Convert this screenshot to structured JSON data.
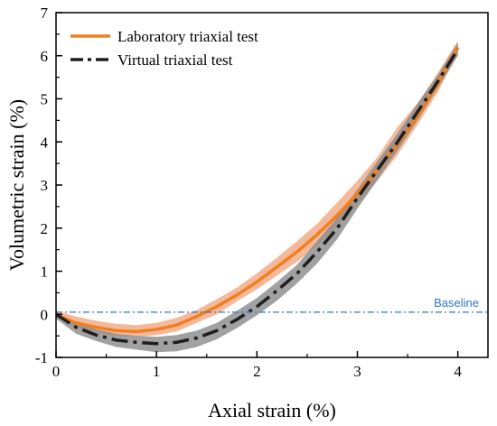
{
  "chart_data": {
    "type": "line",
    "xlabel": "Axial strain (%)",
    "ylabel": "Volumetric strain (%)",
    "xlim": [
      0,
      4.3
    ],
    "ylim": [
      -1,
      7
    ],
    "xticks": [
      "0",
      "1",
      "2",
      "3",
      "4"
    ],
    "yticks": [
      "-1",
      "0",
      "1",
      "2",
      "3",
      "4",
      "5",
      "6",
      "7"
    ],
    "legend_position": "top-left",
    "baseline": {
      "y": 0.05,
      "label": "Baseline",
      "color": "#2f77c2"
    },
    "series": [
      {
        "name": "Laboratory triaxial test",
        "style": "solid",
        "color": "#f07f1f",
        "band_color": "#f0a27a",
        "x": [
          0,
          0.2,
          0.4,
          0.6,
          0.8,
          1.0,
          1.2,
          1.4,
          1.6,
          1.8,
          2.0,
          2.2,
          2.4,
          2.6,
          2.8,
          3.0,
          3.2,
          3.4,
          3.6,
          3.8,
          4.0
        ],
        "y": [
          0,
          -0.2,
          -0.3,
          -0.38,
          -0.4,
          -0.35,
          -0.25,
          -0.05,
          0.18,
          0.45,
          0.75,
          1.1,
          1.45,
          1.85,
          2.3,
          2.8,
          3.35,
          3.95,
          4.6,
          5.35,
          6.2
        ],
        "lower": [
          -0.08,
          -0.32,
          -0.42,
          -0.5,
          -0.52,
          -0.48,
          -0.4,
          -0.2,
          0.0,
          0.3,
          0.58,
          0.9,
          1.22,
          1.6,
          2.05,
          2.55,
          3.1,
          3.7,
          4.4,
          5.15,
          6.05
        ],
        "upper": [
          0.08,
          -0.05,
          -0.15,
          -0.22,
          -0.25,
          -0.2,
          -0.08,
          0.1,
          0.35,
          0.62,
          0.95,
          1.32,
          1.7,
          2.1,
          2.6,
          3.1,
          3.65,
          4.35,
          4.9,
          5.6,
          6.35
        ]
      },
      {
        "name": "Virtual triaxial test",
        "style": "dash-dot",
        "color": "#1f1f1f",
        "band_color": "#8a8a8a",
        "x": [
          0,
          0.2,
          0.4,
          0.6,
          0.8,
          1.0,
          1.2,
          1.4,
          1.6,
          1.8,
          2.0,
          2.2,
          2.4,
          2.6,
          2.8,
          3.0,
          3.2,
          3.4,
          3.6,
          3.8,
          4.0
        ],
        "y": [
          0,
          -0.3,
          -0.48,
          -0.6,
          -0.65,
          -0.68,
          -0.65,
          -0.55,
          -0.38,
          -0.12,
          0.18,
          0.55,
          0.95,
          1.45,
          2.0,
          2.7,
          3.35,
          4.0,
          4.7,
          5.4,
          6.15
        ],
        "lower": [
          -0.1,
          -0.45,
          -0.62,
          -0.76,
          -0.82,
          -0.88,
          -0.86,
          -0.76,
          -0.58,
          -0.32,
          -0.02,
          0.32,
          0.72,
          1.18,
          1.75,
          2.45,
          3.12,
          3.8,
          4.5,
          5.25,
          6.0
        ],
        "upper": [
          0.05,
          -0.18,
          -0.35,
          -0.45,
          -0.5,
          -0.52,
          -0.48,
          -0.38,
          -0.2,
          0.08,
          0.38,
          0.75,
          1.15,
          1.7,
          2.25,
          2.9,
          3.55,
          4.2,
          4.9,
          5.55,
          6.3
        ]
      }
    ]
  }
}
